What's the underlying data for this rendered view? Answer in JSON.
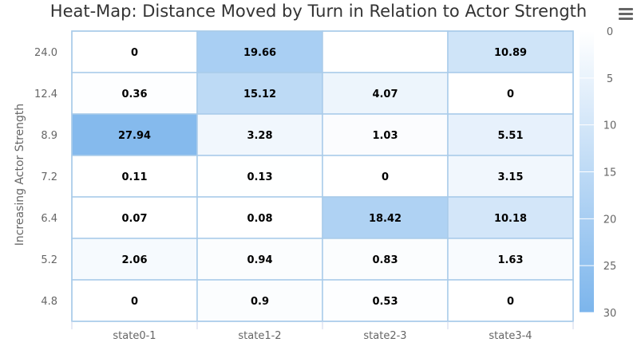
{
  "chart_data": {
    "type": "heatmap",
    "title": "Heat-Map: Distance Moved by Turn in Relation to Actor Strength",
    "ylabel": "Increasing Actor Strength",
    "xlabel": "",
    "x_categories": [
      "state0-1",
      "state1-2",
      "state2-3",
      "state3-4"
    ],
    "y_categories": [
      "24.0",
      "12.4",
      "8.9",
      "7.2",
      "6.4",
      "5.2",
      "4.8"
    ],
    "values": [
      [
        0,
        19.66,
        null,
        10.89
      ],
      [
        0.36,
        15.12,
        4.07,
        0
      ],
      [
        27.94,
        3.28,
        1.03,
        5.51
      ],
      [
        0.11,
        0.13,
        0,
        3.15
      ],
      [
        0.07,
        0.08,
        18.42,
        10.18
      ],
      [
        2.06,
        0.94,
        0.83,
        1.63
      ],
      [
        0,
        0.9,
        0.53,
        0
      ]
    ],
    "color_axis": {
      "min": 0,
      "max": 30,
      "ticks": [
        0,
        5,
        10,
        15,
        20,
        25,
        30
      ],
      "min_color": "#ffffff",
      "max_color": "#7cb5ec",
      "placement": "right",
      "reversed": true
    },
    "grid_color": "#a9cbea",
    "label_color": "#000000"
  },
  "menu_icon": "hamburger-menu-icon"
}
